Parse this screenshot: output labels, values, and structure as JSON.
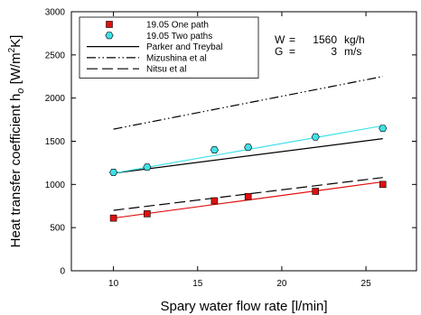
{
  "chart_data": {
    "type": "scatter",
    "xlabel": "Spary water flow rate  [l/min]",
    "ylabel": "Heat transfer coefficient h",
    "ylabel_sub": "o",
    "ylabel_unit_a": " [W/m",
    "ylabel_unit_sup": "2",
    "ylabel_unit_b": "K]",
    "xlim": [
      7.5,
      28
    ],
    "ylim": [
      0,
      3000
    ],
    "xticks": [
      10,
      15,
      20,
      25
    ],
    "yticks": [
      0,
      500,
      1000,
      1500,
      2000,
      2500,
      3000
    ],
    "xtick_labels": [
      "10",
      "15",
      "20",
      "25"
    ],
    "ytick_labels": [
      "0",
      "500",
      "1000",
      "1500",
      "2000",
      "2500",
      "3000"
    ],
    "grid": false,
    "legend_position": "top-left",
    "series": [
      {
        "name": "19.05  One path",
        "kind": "marker",
        "marker": "square",
        "color": "#e01010",
        "points": [
          [
            10,
            610
          ],
          [
            12,
            660
          ],
          [
            16,
            810
          ],
          [
            18,
            860
          ],
          [
            22,
            920
          ],
          [
            26,
            1000
          ]
        ]
      },
      {
        "name": "19.05  Two paths",
        "kind": "marker",
        "marker": "hexagon",
        "color": "#40e0e8",
        "points": [
          [
            10,
            1140
          ],
          [
            12,
            1200
          ],
          [
            16,
            1400
          ],
          [
            18,
            1430
          ],
          [
            22,
            1550
          ],
          [
            26,
            1650
          ]
        ]
      },
      {
        "name": "Parker and Treybal",
        "kind": "line",
        "dash": "solid",
        "color": "#000000",
        "points": [
          [
            10,
            1130
          ],
          [
            26,
            1530
          ]
        ]
      },
      {
        "name": "Mizushina et al",
        "kind": "line",
        "dash": "dashdotdot",
        "color": "#000000",
        "points": [
          [
            10,
            1640
          ],
          [
            26,
            2250
          ]
        ]
      },
      {
        "name": "Nitsu et al",
        "kind": "line",
        "dash": "dashed",
        "color": "#000000",
        "points": [
          [
            10,
            700
          ],
          [
            26,
            1080
          ]
        ]
      }
    ],
    "fit_lines": [
      {
        "for_series": "19.05  One path",
        "color": "#e01010",
        "points": [
          [
            10,
            610
          ],
          [
            26,
            1030
          ]
        ]
      },
      {
        "for_series": "19.05  Two paths",
        "color": "#40e0e8",
        "points": [
          [
            10,
            1130
          ],
          [
            26,
            1680
          ]
        ]
      }
    ],
    "conditions": [
      {
        "symbol": "W",
        "eq": "=",
        "value": "1560",
        "unit": "kg/h"
      },
      {
        "symbol": "G",
        "eq": "=",
        "value": "3",
        "unit": "m/s"
      }
    ]
  }
}
